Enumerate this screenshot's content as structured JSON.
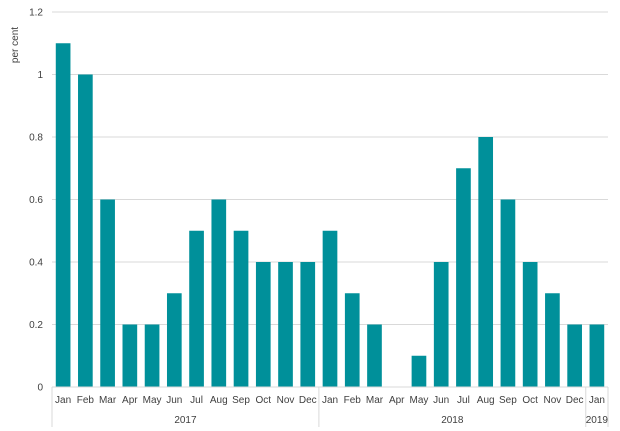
{
  "chart_data": {
    "type": "bar",
    "ylabel": "per cent",
    "ylim": [
      0,
      1.2
    ],
    "yticks": [
      "0",
      "0.2",
      "0.4",
      "0.6",
      "0.8",
      "1",
      "1.2"
    ],
    "grid": true,
    "bar_color": "#00909A",
    "grid_color": "#D9D9D9",
    "categories": [
      "Jan",
      "Feb",
      "Mar",
      "Apr",
      "May",
      "Jun",
      "Jul",
      "Aug",
      "Sep",
      "Oct",
      "Nov",
      "Dec",
      "Jan",
      "Feb",
      "Mar",
      "Apr",
      "May",
      "Jun",
      "Jul",
      "Aug",
      "Sep",
      "Oct",
      "Nov",
      "Dec",
      "Jan"
    ],
    "values": [
      1.1,
      1.0,
      0.6,
      0.2,
      0.2,
      0.3,
      0.5,
      0.6,
      0.5,
      0.4,
      0.4,
      0.4,
      0.5,
      0.3,
      0.2,
      0.0,
      0.1,
      0.4,
      0.7,
      0.8,
      0.6,
      0.4,
      0.3,
      0.2,
      0.2
    ],
    "groups": [
      {
        "label": "2017",
        "count": 12
      },
      {
        "label": "2018",
        "count": 12
      },
      {
        "label": "2019",
        "count": 1
      }
    ]
  }
}
